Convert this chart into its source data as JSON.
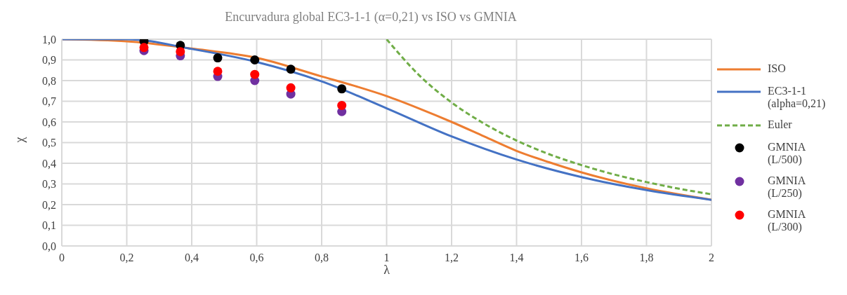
{
  "chart_data": {
    "type": "line",
    "title": "Encurvadura global EC3-1-1 (α=0,21) vs ISO vs GMNIA",
    "xlabel": "λ",
    "ylabel": "χ",
    "xlim": [
      0,
      2
    ],
    "xticks": [
      0,
      {
        "value": 0.2,
        "label": "0,2"
      },
      {
        "value": 0.4,
        "label": "0,4"
      },
      {
        "value": 0.6,
        "label": "0,6"
      },
      {
        "value": 0.8,
        "label": "0,8"
      },
      1,
      {
        "value": 1.2,
        "label": "1,2"
      },
      {
        "value": 1.4,
        "label": "1,4"
      },
      {
        "value": 1.6,
        "label": "1,6"
      },
      {
        "value": 1.8,
        "label": "1,8"
      },
      2
    ],
    "ylim": [
      0,
      1
    ],
    "yticks": [
      {
        "value": 0,
        "label": "0,0"
      },
      {
        "value": 0.1,
        "label": "0,1"
      },
      {
        "value": 0.2,
        "label": "0,2"
      },
      {
        "value": 0.3,
        "label": "0,3"
      },
      {
        "value": 0.4,
        "label": "0,4"
      },
      {
        "value": 0.5,
        "label": "0,5"
      },
      {
        "value": 0.6,
        "label": "0,6"
      },
      {
        "value": 0.7,
        "label": "0,7"
      },
      {
        "value": 0.8,
        "label": "0,8"
      },
      {
        "value": 0.9,
        "label": "0,9"
      },
      {
        "value": 1,
        "label": "1,0"
      }
    ],
    "grid": true,
    "legend": "right",
    "series": [
      {
        "name": "ISO",
        "color": "#ed7d31",
        "marker": "none",
        "line_style": "solid",
        "x": [
          0,
          0.2,
          0.4,
          0.6,
          0.8,
          0.9,
          1,
          1.1,
          1.2,
          1.3,
          1.4,
          1.5,
          1.6,
          1.8,
          2
        ],
        "values": [
          1,
          0.99,
          0.955,
          0.91,
          0.82,
          0.775,
          0.725,
          0.665,
          0.6,
          0.53,
          0.46,
          0.405,
          0.356,
          0.279,
          0.224
        ]
      },
      {
        "name": "EC3-1-1 (alpha=0,21)",
        "color": "#4472c4",
        "marker": "none",
        "line_style": "solid",
        "x": [
          0,
          0.2,
          0.4,
          0.6,
          0.8,
          1,
          1.2,
          1.4,
          1.6,
          1.8,
          2
        ],
        "values": [
          1,
          1,
          0.953,
          0.89,
          0.796,
          0.666,
          0.53,
          0.418,
          0.333,
          0.27,
          0.223
        ]
      },
      {
        "name": "Euler",
        "color": "#70ad47",
        "marker": "none",
        "line_style": "dashed",
        "x": [
          1,
          1.1,
          1.2,
          1.3,
          1.4,
          1.5,
          1.6,
          1.7,
          1.8,
          1.9,
          2
        ],
        "values": [
          1,
          0.826,
          0.694,
          0.592,
          0.51,
          0.444,
          0.391,
          0.346,
          0.309,
          0.277,
          0.25
        ]
      },
      {
        "name": "GMNIA (L/500)",
        "type": "scatter",
        "color": "#000000",
        "marker": "circle",
        "x": [
          0.253,
          0.365,
          0.48,
          0.594,
          0.705,
          0.862
        ],
        "values": [
          0.99,
          0.97,
          0.91,
          0.9,
          0.855,
          0.76
        ]
      },
      {
        "name": "GMNIA (L/250)",
        "type": "scatter",
        "color": "#7030a0",
        "marker": "circle",
        "x": [
          0.253,
          0.365,
          0.48,
          0.594,
          0.705,
          0.862
        ],
        "values": [
          0.945,
          0.92,
          0.82,
          0.8,
          0.735,
          0.65
        ]
      },
      {
        "name": "GMNIA (L/300)",
        "type": "scatter",
        "color": "#ff0000",
        "marker": "circle",
        "x": [
          0.253,
          0.365,
          0.48,
          0.594,
          0.705,
          0.862
        ],
        "values": [
          0.96,
          0.94,
          0.845,
          0.83,
          0.765,
          0.68
        ]
      }
    ]
  }
}
